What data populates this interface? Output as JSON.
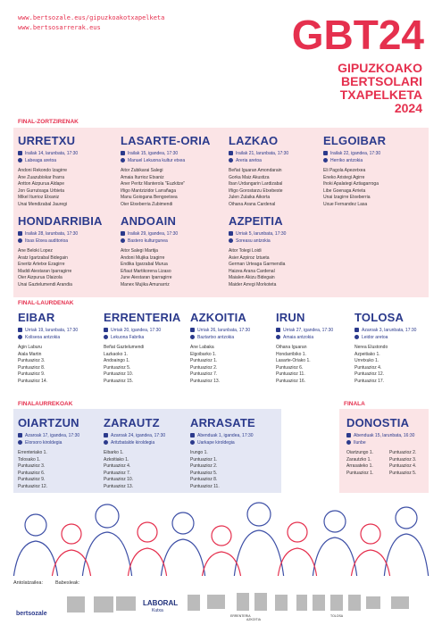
{
  "header": {
    "urls": [
      "www.bertsozale.eus/gipuzkoakotxapelketa",
      "www.bertsosarrerak.eus"
    ],
    "title": "GBT24",
    "subtitle": [
      "GIPUZKOAKO",
      "BERTSOLARI",
      "TXAPELKETA",
      "2024"
    ]
  },
  "sections": [
    {
      "label": "FINAL-ZORTZIRENAK",
      "events": [
        {
          "city": "URRETXU",
          "date": "Irailak 14, larunbata, 17:30",
          "venue": "Labeaga aretoa",
          "names": [
            "Andoni Rekondo Izagirre",
            "Ane Zuazubiskar Iharra",
            "Antton Aizpurua Aldape",
            "Jon Gurrutxaga Urbieta",
            "Mikel Iturrioz Etxaniz",
            "Unai Mendizabal Jauregi"
          ]
        },
        {
          "city": "LASARTE-ORIA",
          "date": "Irailak 15, igandea, 17:30",
          "venue": "Manuel Lekuona kultur etxea",
          "names": [
            "Aitor Zubikarai Salegi",
            "Amaia Iturrioz Etxaniz",
            "Aner Peritz Manterola \"Euzkitze\"",
            "Iñigo Mantzizidor Larrañaga",
            "Manu Goiogana Bengoetxea",
            "Oier Etxeberria Zubimendi"
          ]
        },
        {
          "city": "LAZKAO",
          "date": "Irailak 21, larunbata, 17:30",
          "venue": "Areria aretoa",
          "names": [
            "Beñat Iguaran Amondarain",
            "Gorka Maiz Akustiza",
            "Iban Urdangarin Lardizabal",
            "Iñigo Gorostarzu Etxebeste",
            "Julen Zulaika Aikorta",
            "Oihana Arana Cardenal"
          ]
        },
        {
          "city": "ELGOIBAR",
          "date": "Irailak 22, igandea, 17:30",
          "venue": "Herriko antzokia",
          "names": [
            "Eli Pagola Apezetxea",
            "Eneko Aristegi Agirre",
            "Ihoki Apalategi Aztiagarroga",
            "Libe Goenaga Arrieta",
            "Unai Izagirre Etxeberria",
            "Uxue Fernandez Lasa"
          ]
        },
        {
          "city": "HONDARRIBIA",
          "date": "Irailak 28, larunbata, 17:30",
          "venue": "Itsas Etxea auditorioa",
          "names": [
            "Ane Beloki Lopez",
            "Aratz Igartzabal Bidegain",
            "Eneritz Artetxe Ezagirre",
            "Maddi Aiestaran Iparragirre",
            "Oier Aizpurua Olaizola",
            "Unai Gaztelumendi Arandia"
          ]
        },
        {
          "city": "ANDOAIN",
          "date": "Irailak 29, igandea, 17:30",
          "venue": "Bastero kulturgunea",
          "names": [
            "Aitor Salegi Martija",
            "Andoni Mujika Izagirre",
            "Endika Igarzabal Murua",
            "Eñaut Martikorena Lizaso",
            "June Aiestaran Iparragirre",
            "Manex Mujika Amunarriz"
          ]
        },
        {
          "city": "AZPEITIA",
          "date": "Urriak 5, larunbata, 17:30",
          "venue": "Soreasu antzokia",
          "names": [
            "Aitor Tolegi Loidi",
            "Asier Azpiroz Iztueta",
            "German Urteaga Garmendia",
            "Haizea Arana Cardenal",
            "Maialen Akizu Bidegain",
            "Maider Arregi Morkoteta"
          ]
        }
      ]
    },
    {
      "label": "FINAL-LAURDENAK",
      "events": [
        {
          "city": "EIBAR",
          "date": "Urriak 19, larunbata, 17:30",
          "venue": "Koliseoa antzokia",
          "names": [
            "Agin Laburu",
            "Aiala Martin",
            "Puntuazioz 3.",
            "Puntuazioz 8.",
            "Puntuazioz 9.",
            "Puntuazioz 14."
          ]
        },
        {
          "city": "ERRENTERIA",
          "date": "Urriak 20, igandea, 17:30",
          "venue": "Lekuona Fabrika",
          "names": [
            "Beñat Gaztelumendi",
            "Lazkaoko 1.",
            "Andoaingo 1.",
            "Puntuazioz 5.",
            "Puntuazioz 10.",
            "Puntuazioz 15."
          ]
        },
        {
          "city": "AZKOITIA",
          "date": "Urriak 26, larunbata, 17:30",
          "venue": "Baztartxo antzokia",
          "names": [
            "Ane Labaka",
            "Elgoibarko 1.",
            "Puntuazioz 1.",
            "Puntuazioz 2.",
            "Puntuazioz 7.",
            "Puntuazioz 13."
          ]
        },
        {
          "city": "IRUN",
          "date": "Urriak 27, igandea, 17:30",
          "venue": "Amaia antzokia",
          "names": [
            "Oihana Iguaran",
            "Hondarribiko 1.",
            "Lasarte-Oriako 1.",
            "Puntuazioz 6.",
            "Puntuazioz 11.",
            "Puntuazioz 16."
          ]
        },
        {
          "city": "TOLOSA",
          "date": "Azaroak 3, larunbata, 17:30",
          "venue": "Leidor aretoa",
          "names": [
            "Nerea Elustondo",
            "Azpeitiako 1.",
            "Urretxuko 1.",
            "Puntuazioz 4.",
            "Puntuazioz 12.",
            "Puntuazioz 17."
          ]
        }
      ]
    },
    {
      "label": "FINALAURREKOAK",
      "events": [
        {
          "city": "OIARTZUN",
          "date": "Azaroak 17, igandea, 17:30",
          "venue": "Elorsoro kiroldegia",
          "names": [
            "Errenteriako 1.",
            "Tolosako 1.",
            "Puntuazioz 3.",
            "Puntuazioz 6.",
            "Puntuazioz 9.",
            "Puntuazioz 12."
          ]
        },
        {
          "city": "ZARAUTZ",
          "date": "Azaroak 24, igandea, 17:30",
          "venue": "Aritzbatalde kiroldegia",
          "names": [
            "Eibarko 1.",
            "Azkoitiako 1.",
            "Puntuazioz 4.",
            "Puntuazioz 7.",
            "Puntuazioz 10.",
            "Puntuazioz 13."
          ]
        },
        {
          "city": "ARRASATE",
          "date": "Abenduak 1, igandea, 17:30",
          "venue": "Uarkape kiroldegia",
          "names": [
            "Irungo 1.",
            "Puntuazioz 1.",
            "Puntuazioz 2.",
            "Puntuazioz 5.",
            "Puntuazioz 8.",
            "Puntuazioz 11."
          ]
        }
      ]
    },
    {
      "label": "FINALA",
      "events": [
        {
          "city": "DONOSTIA",
          "date": "Abenduak 15, larunbata, 16:30",
          "venue": "Ilunbe",
          "names": [
            "Oiartzungo 1.",
            "Zarautzko 1.",
            "Arrasateko 1.",
            "Puntuazioz 1.",
            "Puntuazioz 2.",
            "Puntuazioz 3.",
            "Puntuazioz 4.",
            "Puntuazioz 5."
          ]
        }
      ]
    }
  ],
  "footer": {
    "organizer_label": "Antolatzailea:",
    "sponsors_label": "Babesleak:",
    "logos": [
      "bertsozale",
      "LABORAL",
      "Kutxa",
      "ERRENTERIA",
      "AZKOITIA",
      "TOLOSA"
    ]
  }
}
